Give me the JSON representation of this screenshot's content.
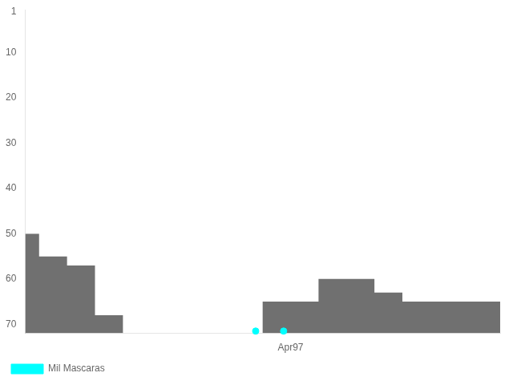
{
  "chart_data": {
    "type": "area",
    "series": [
      {
        "name": "Mil Mascaras",
        "type": "scatter",
        "color": "#00ffff",
        "x": [
          16.5,
          18.5
        ],
        "values": [
          71.5,
          71.5
        ]
      },
      {
        "type": "area",
        "color": "#707070",
        "line_style": "steps-post",
        "x": [
          0,
          1,
          2,
          3,
          4,
          5,
          6,
          7,
          8,
          9,
          10,
          11,
          12,
          13,
          14,
          15,
          16,
          17,
          18,
          19,
          20,
          21,
          22,
          23,
          24,
          25,
          26,
          27,
          28,
          29,
          30,
          31,
          32,
          33,
          34
        ],
        "values": [
          50,
          50,
          55,
          55,
          57,
          57,
          68,
          68,
          72,
          72,
          72,
          72,
          72,
          72,
          72,
          72,
          72,
          72,
          65,
          65,
          65,
          65,
          60,
          60,
          60,
          60,
          63,
          63,
          65,
          65,
          65,
          65,
          65,
          65,
          65
        ]
      }
    ],
    "xlim": [
      0,
      34
    ],
    "xticks": [
      {
        "value": 19,
        "label": "Apr97"
      }
    ],
    "ylim": [
      72,
      0.5
    ],
    "yticks": [
      1,
      10,
      20,
      30,
      40,
      50,
      60,
      70
    ],
    "grid": false,
    "legend": "lower left"
  }
}
